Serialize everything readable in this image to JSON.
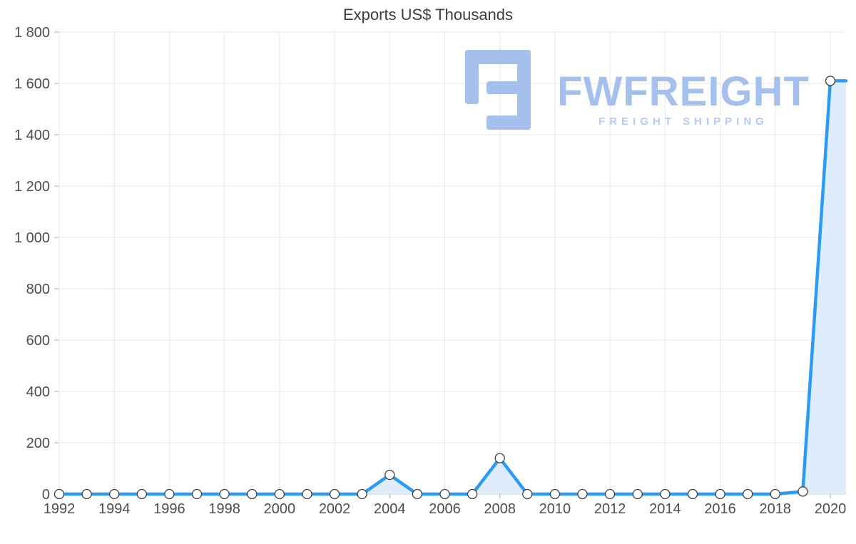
{
  "chart_data": {
    "type": "area",
    "title": "Exports US$ Thousands",
    "x": [
      1992,
      1993,
      1994,
      1995,
      1996,
      1997,
      1998,
      1999,
      2000,
      2001,
      2002,
      2003,
      2004,
      2005,
      2006,
      2007,
      2008,
      2009,
      2010,
      2011,
      2012,
      2013,
      2014,
      2015,
      2016,
      2017,
      2018,
      2019,
      2020
    ],
    "values": [
      0,
      0,
      0,
      0,
      0,
      0,
      0,
      0,
      0,
      0,
      0,
      0,
      75,
      0,
      0,
      0,
      140,
      0,
      0,
      0,
      0,
      0,
      0,
      0,
      0,
      0,
      0,
      10,
      1610
    ],
    "xlabel": "",
    "ylabel": "",
    "ylim": [
      0,
      1800
    ],
    "xlim": [
      1992,
      2020
    ],
    "grid": true,
    "legend": "none",
    "y_ticks": [
      {
        "value": 0,
        "label": "0"
      },
      {
        "value": 200,
        "label": "200"
      },
      {
        "value": 400,
        "label": "400"
      },
      {
        "value": 600,
        "label": "600"
      },
      {
        "value": 800,
        "label": "800"
      },
      {
        "value": 1000,
        "label": "1 000"
      },
      {
        "value": 1200,
        "label": "1 200"
      },
      {
        "value": 1400,
        "label": "1 400"
      },
      {
        "value": 1600,
        "label": "1 600"
      },
      {
        "value": 1800,
        "label": "1 800"
      }
    ],
    "x_ticks": [
      {
        "value": 1992,
        "label": "1992"
      },
      {
        "value": 1994,
        "label": "1994"
      },
      {
        "value": 1996,
        "label": "1996"
      },
      {
        "value": 1998,
        "label": "1998"
      },
      {
        "value": 2000,
        "label": "2000"
      },
      {
        "value": 2002,
        "label": "2002"
      },
      {
        "value": 2004,
        "label": "2004"
      },
      {
        "value": 2006,
        "label": "2006"
      },
      {
        "value": 2008,
        "label": "2008"
      },
      {
        "value": 2010,
        "label": "2010"
      },
      {
        "value": 2012,
        "label": "2012"
      },
      {
        "value": 2014,
        "label": "2014"
      },
      {
        "value": 2016,
        "label": "2016"
      },
      {
        "value": 2018,
        "label": "2018"
      },
      {
        "value": 2020,
        "label": "2020"
      }
    ],
    "colors": {
      "line": "#2b9bf4",
      "fill": "#dbeafc",
      "grid": "#e7e7e7",
      "baseline": "#c9c9c9",
      "tick": "#aaaaaa",
      "marker_fill": "#ffffff",
      "marker_stroke": "#404040",
      "axis_text": "#4d4d4d"
    }
  },
  "watermark": {
    "brand": "FWFREIGHT",
    "tagline": "FREIGHT SHIPPING",
    "brand_color": "#a6c0ed",
    "tagline_color": "#b5cbf2",
    "logo_color": "#a6c0ee",
    "logo_icon": "fwfreight-logo-icon"
  }
}
